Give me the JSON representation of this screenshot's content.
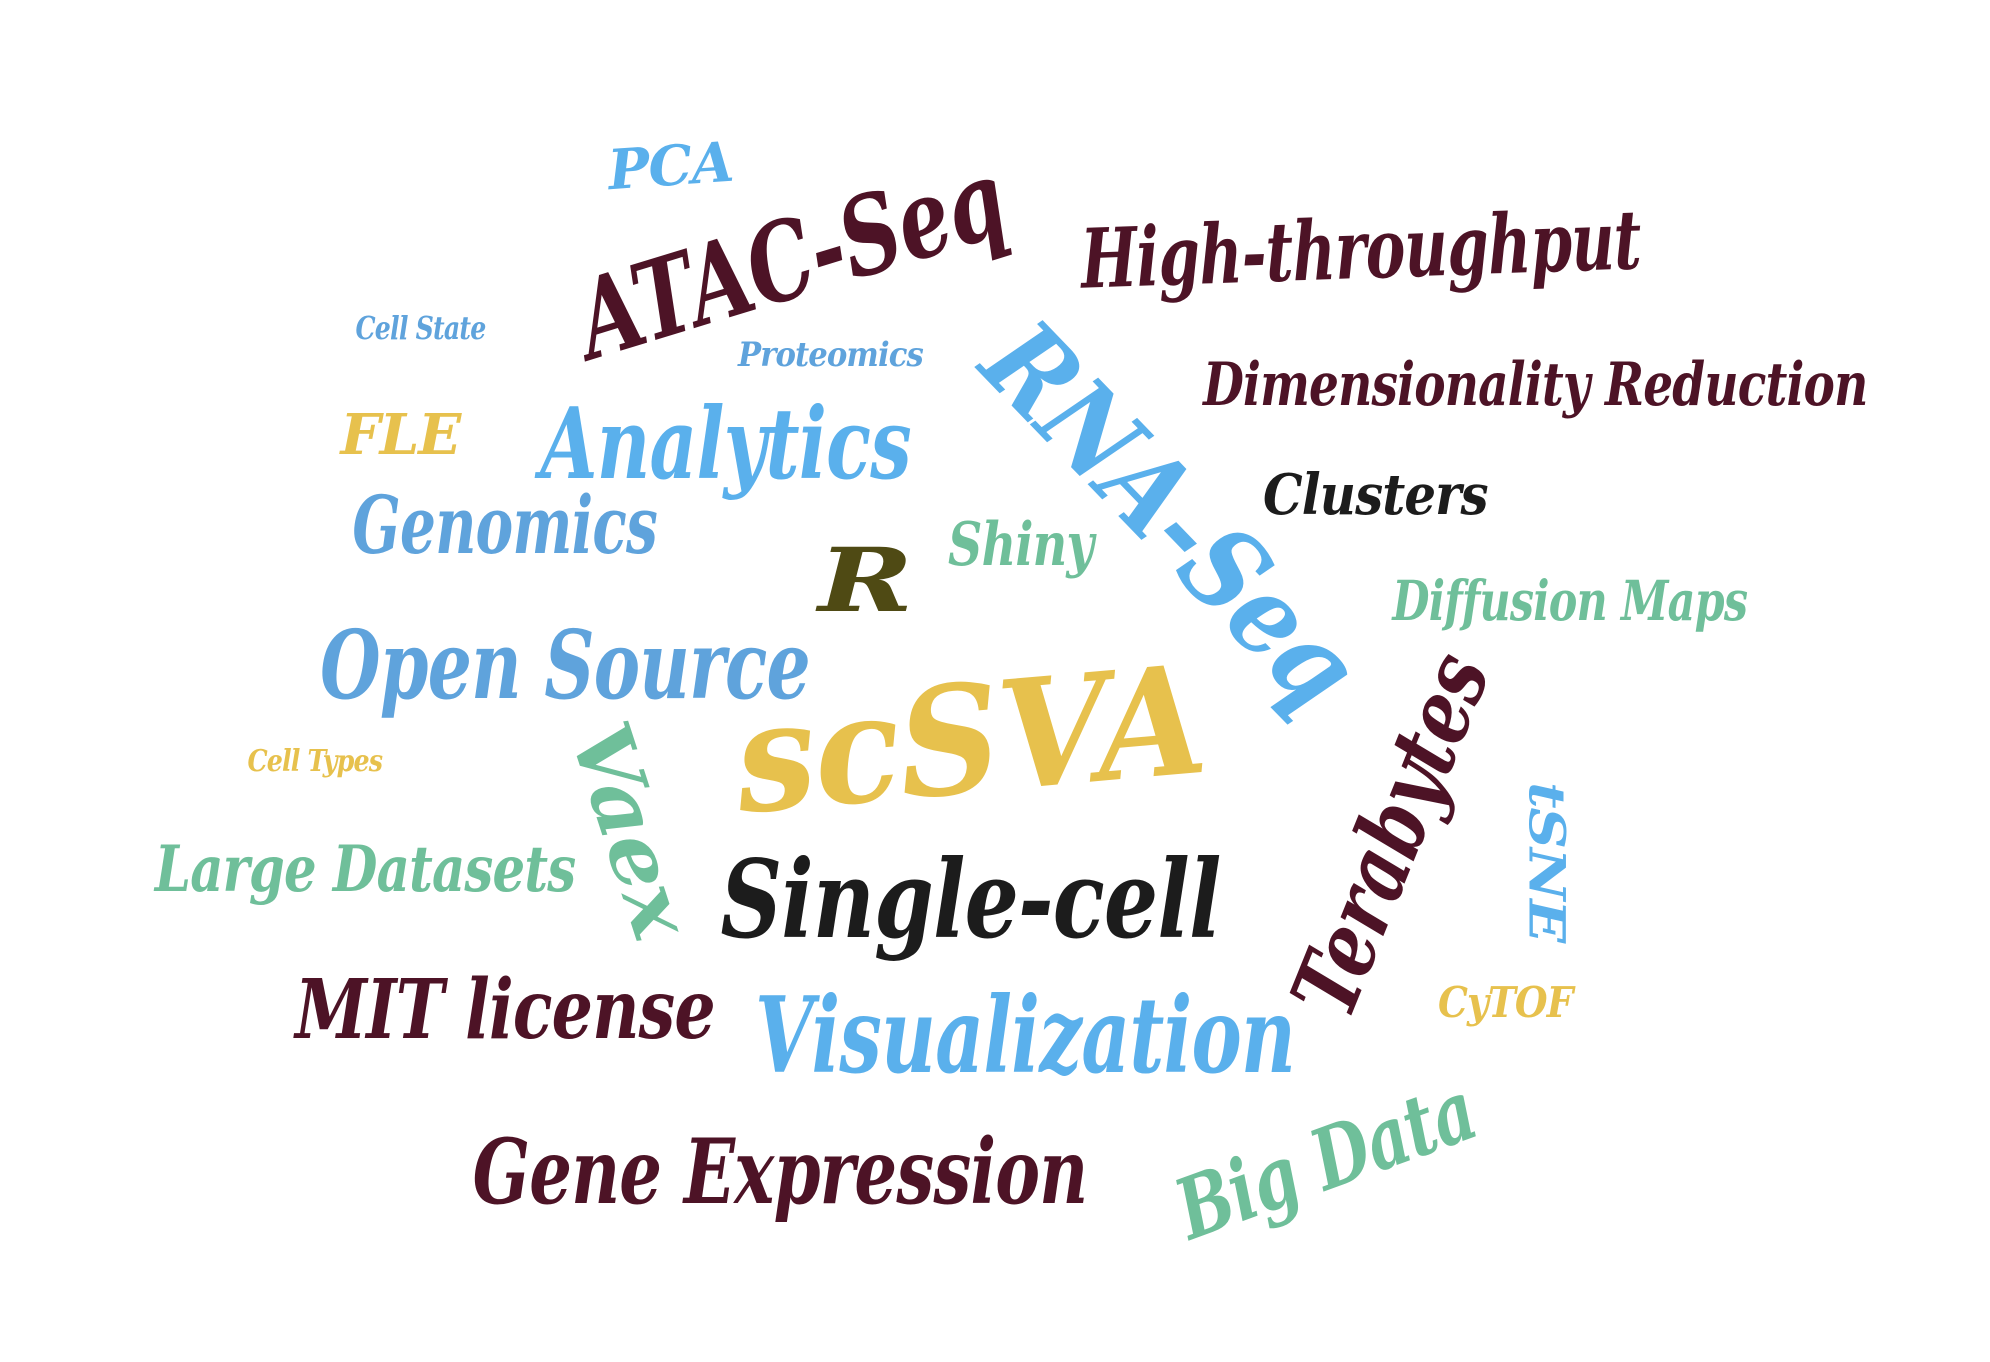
{
  "palette": {
    "maroon": "#4d1326",
    "light_blue": "#5ab0ec",
    "mid_blue": "#5fa3dc",
    "gold": "#e7c14d",
    "green": "#6fbf9a",
    "black": "#1c1c1c",
    "olive": "#4f4a14"
  },
  "words": [
    {
      "key": "pca",
      "text": "PCA",
      "color": "light_blue"
    },
    {
      "key": "atac_seq",
      "text": "ATAC-Seq",
      "color": "maroon"
    },
    {
      "key": "high_throughput",
      "text": "High-throughput",
      "color": "maroon"
    },
    {
      "key": "cell_state",
      "text": "Cell State",
      "color": "mid_blue"
    },
    {
      "key": "proteomics",
      "text": "Proteomics",
      "color": "mid_blue"
    },
    {
      "key": "rna_seq",
      "text": "RNA-Seq",
      "color": "light_blue"
    },
    {
      "key": "dimensionality_reduction",
      "text": "Dimensionality Reduction",
      "color": "maroon"
    },
    {
      "key": "fle",
      "text": "FLE",
      "color": "gold"
    },
    {
      "key": "analytics",
      "text": "Analytics",
      "color": "light_blue"
    },
    {
      "key": "clusters",
      "text": "Clusters",
      "color": "black"
    },
    {
      "key": "genomics",
      "text": "Genomics",
      "color": "mid_blue"
    },
    {
      "key": "r",
      "text": "R",
      "color": "olive"
    },
    {
      "key": "shiny",
      "text": "Shiny",
      "color": "green"
    },
    {
      "key": "diffusion_maps",
      "text": "Diffusion Maps",
      "color": "green"
    },
    {
      "key": "open_source",
      "text": "Open Source",
      "color": "mid_blue"
    },
    {
      "key": "scsva",
      "text": "scSVA",
      "color": "gold"
    },
    {
      "key": "cell_types",
      "text": "Cell Types",
      "color": "gold"
    },
    {
      "key": "vaex",
      "text": "Vaex",
      "color": "green"
    },
    {
      "key": "terabytes",
      "text": "Terabytes",
      "color": "maroon"
    },
    {
      "key": "tsne",
      "text": "tSNE",
      "color": "light_blue"
    },
    {
      "key": "large_datasets",
      "text": "Large Datasets",
      "color": "green"
    },
    {
      "key": "single_cell",
      "text": "Single-cell",
      "color": "black"
    },
    {
      "key": "mit_license",
      "text": "MIT license",
      "color": "maroon"
    },
    {
      "key": "cytof",
      "text": "CyTOF",
      "color": "gold"
    },
    {
      "key": "visualization",
      "text": "Visualization",
      "color": "light_blue"
    },
    {
      "key": "big_data",
      "text": "Big Data",
      "color": "green"
    },
    {
      "key": "gene_expression",
      "text": "Gene Expression",
      "color": "maroon"
    }
  ]
}
